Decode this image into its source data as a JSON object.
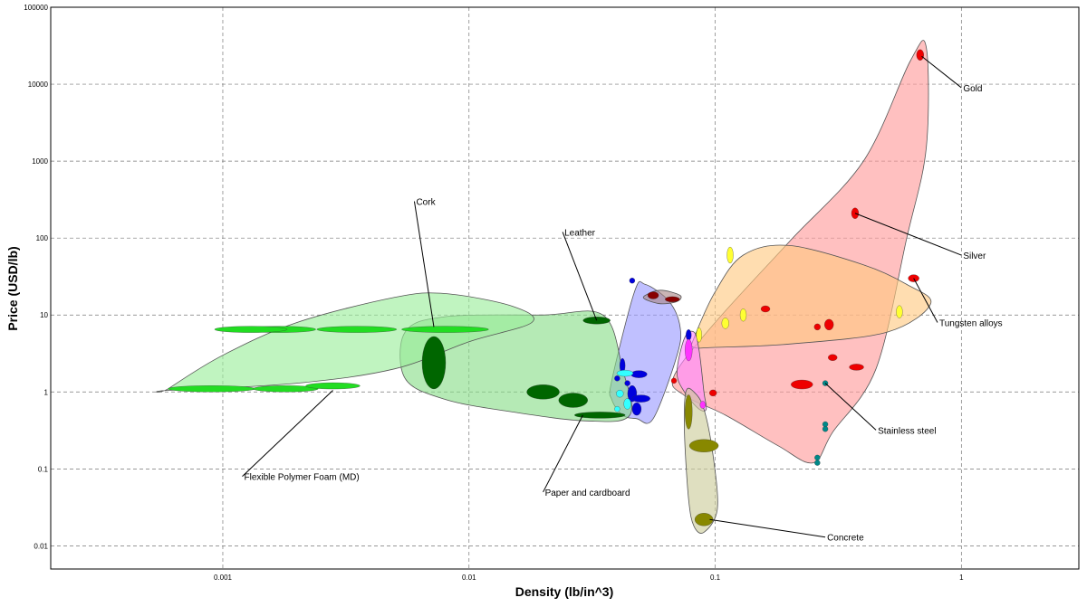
{
  "chart_data": {
    "type": "scatter",
    "title": "",
    "xlabel": "Density (lb/in^3)",
    "ylabel": "Price (USD/lb)",
    "x_scale": "log",
    "y_scale": "log",
    "xlim": [
      0.0002,
      3
    ],
    "ylim": [
      0.005,
      100000
    ],
    "grid": true,
    "x_ticks": [
      {
        "value": 0.001,
        "label": "0.001"
      },
      {
        "value": 0.01,
        "label": "0.01"
      },
      {
        "value": 0.1,
        "label": "0.1"
      },
      {
        "value": 1,
        "label": "1"
      }
    ],
    "y_ticks": [
      {
        "value": 0.01,
        "label": "0.01"
      },
      {
        "value": 0.1,
        "label": "0.1"
      },
      {
        "value": 1,
        "label": "1"
      },
      {
        "value": 10,
        "label": "10"
      },
      {
        "value": 100,
        "label": "100"
      },
      {
        "value": 1000,
        "label": "1000"
      },
      {
        "value": 10000,
        "label": "10000"
      },
      {
        "value": 100000,
        "label": "100000"
      }
    ],
    "envelopes": [
      {
        "fill": "#ff9999",
        "points": [
          [
            0.068,
            1.6
          ],
          [
            0.1,
            8
          ],
          [
            0.2,
            90
          ],
          [
            0.4,
            1000
          ],
          [
            0.62,
            20000
          ],
          [
            0.72,
            30000
          ],
          [
            0.72,
            1500
          ],
          [
            0.6,
            100
          ],
          [
            0.45,
            2
          ],
          [
            0.3,
            0.3
          ],
          [
            0.25,
            0.12
          ],
          [
            0.18,
            0.2
          ],
          [
            0.11,
            0.5
          ],
          [
            0.075,
            0.9
          ]
        ]
      },
      {
        "fill": "#ffc880",
        "points": [
          [
            0.082,
            5
          ],
          [
            0.1,
            20
          ],
          [
            0.13,
            60
          ],
          [
            0.2,
            80
          ],
          [
            0.4,
            45
          ],
          [
            0.6,
            25
          ],
          [
            0.75,
            14
          ],
          [
            0.5,
            6
          ],
          [
            0.2,
            4.2
          ],
          [
            0.1,
            3.8
          ],
          [
            0.082,
            3.8
          ]
        ]
      },
      {
        "fill": "#9999ff",
        "points": [
          [
            0.038,
            1.4
          ],
          [
            0.047,
            20
          ],
          [
            0.052,
            25
          ],
          [
            0.065,
            15
          ],
          [
            0.072,
            7
          ],
          [
            0.07,
            3
          ],
          [
            0.056,
            0.45
          ],
          [
            0.048,
            0.45
          ],
          [
            0.042,
            0.5
          ],
          [
            0.038,
            0.8
          ]
        ]
      },
      {
        "fill": "#ff88ff",
        "points": [
          [
            0.07,
            1.8
          ],
          [
            0.075,
            5
          ],
          [
            0.082,
            6
          ],
          [
            0.086,
            3.5
          ],
          [
            0.09,
            1
          ],
          [
            0.092,
            0.6
          ],
          [
            0.086,
            0.6
          ],
          [
            0.075,
            1
          ]
        ]
      },
      {
        "fill": "#aa8888",
        "points": [
          [
            0.052,
            18
          ],
          [
            0.06,
            21
          ],
          [
            0.072,
            18
          ],
          [
            0.07,
            15
          ],
          [
            0.06,
            14
          ],
          [
            0.052,
            16
          ]
        ]
      },
      {
        "fill": "#88dd88",
        "points": [
          [
            0.0055,
            6
          ],
          [
            0.008,
            9.5
          ],
          [
            0.02,
            10
          ],
          [
            0.035,
            10
          ],
          [
            0.042,
            2
          ],
          [
            0.045,
            0.5
          ],
          [
            0.03,
            0.42
          ],
          [
            0.015,
            0.55
          ],
          [
            0.008,
            0.8
          ],
          [
            0.0055,
            1.5
          ]
        ]
      },
      {
        "fill": "#99ee99",
        "points": [
          [
            0.0006,
            1.1
          ],
          [
            0.001,
            3
          ],
          [
            0.002,
            8
          ],
          [
            0.005,
            17
          ],
          [
            0.008,
            19
          ],
          [
            0.015,
            13
          ],
          [
            0.018,
            8
          ],
          [
            0.01,
            4.5
          ],
          [
            0.005,
            2
          ],
          [
            0.002,
            1.3
          ],
          [
            0.0006,
            1.05
          ]
        ]
      },
      {
        "fill": "#cccc99",
        "points": [
          [
            0.076,
            1
          ],
          [
            0.082,
            1
          ],
          [
            0.09,
            0.6
          ],
          [
            0.098,
            0.15
          ],
          [
            0.102,
            0.03
          ],
          [
            0.09,
            0.015
          ],
          [
            0.082,
            0.018
          ],
          [
            0.078,
            0.04
          ],
          [
            0.075,
            0.3
          ]
        ]
      }
    ],
    "bubbles": [
      {
        "x": 0.0009,
        "y": 1.1,
        "rx": 48,
        "ry": 3.5,
        "color": "#22dd22"
      },
      {
        "x": 0.0018,
        "y": 1.1,
        "rx": 36,
        "ry": 3.5,
        "color": "#22dd22"
      },
      {
        "x": 0.0028,
        "y": 1.2,
        "rx": 30,
        "ry": 3.5,
        "color": "#22dd22"
      },
      {
        "x": 0.0017,
        "y": 6.5,
        "rx": 40,
        "ry": 3.5,
        "color": "#22dd22"
      },
      {
        "x": 0.0035,
        "y": 6.5,
        "rx": 44,
        "ry": 3.5,
        "color": "#22dd22"
      },
      {
        "x": 0.008,
        "y": 6.5,
        "rx": 48,
        "ry": 3.5,
        "color": "#22dd22"
      },
      {
        "x": 0.0013,
        "y": 6.5,
        "rx": 40,
        "ry": 3.5,
        "color": "#22dd22"
      },
      {
        "x": 0.0072,
        "y": 2.4,
        "rx": 13,
        "ry": 29,
        "color": "#006600"
      },
      {
        "x": 0.033,
        "y": 8.5,
        "rx": 15,
        "ry": 4,
        "color": "#006600"
      },
      {
        "x": 0.02,
        "y": 1.0,
        "rx": 18,
        "ry": 8,
        "color": "#006600"
      },
      {
        "x": 0.0265,
        "y": 0.78,
        "rx": 16,
        "ry": 8,
        "color": "#006600"
      },
      {
        "x": 0.034,
        "y": 0.5,
        "rx": 28,
        "ry": 3.5,
        "color": "#006600"
      },
      {
        "x": 0.046,
        "y": 28,
        "rx": 3,
        "ry": 3,
        "color": "#0000dd"
      },
      {
        "x": 0.042,
        "y": 2.2,
        "rx": 3,
        "ry": 8,
        "color": "#0000dd"
      },
      {
        "x": 0.049,
        "y": 1.7,
        "rx": 9,
        "ry": 4,
        "color": "#0000dd"
      },
      {
        "x": 0.046,
        "y": 0.95,
        "rx": 5,
        "ry": 9,
        "color": "#0000dd"
      },
      {
        "x": 0.05,
        "y": 0.82,
        "rx": 10,
        "ry": 4,
        "color": "#0000dd"
      },
      {
        "x": 0.048,
        "y": 0.6,
        "rx": 5,
        "ry": 7,
        "color": "#0000dd"
      },
      {
        "x": 0.044,
        "y": 1.3,
        "rx": 3,
        "ry": 3,
        "color": "#0000dd"
      },
      {
        "x": 0.04,
        "y": 1.5,
        "rx": 3,
        "ry": 3,
        "color": "#0000dd"
      },
      {
        "x": 0.043,
        "y": 1.75,
        "rx": 9,
        "ry": 3.5,
        "color": "#33ffff"
      },
      {
        "x": 0.041,
        "y": 0.95,
        "rx": 4,
        "ry": 4,
        "color": "#33ffff"
      },
      {
        "x": 0.044,
        "y": 0.7,
        "rx": 4,
        "ry": 6,
        "color": "#33ffff"
      },
      {
        "x": 0.04,
        "y": 0.6,
        "rx": 3,
        "ry": 3,
        "color": "#33ffff"
      },
      {
        "x": 0.078,
        "y": 5.5,
        "rx": 3,
        "ry": 6,
        "color": "#0000dd"
      },
      {
        "x": 0.056,
        "y": 18,
        "rx": 6,
        "ry": 4,
        "color": "#880000"
      },
      {
        "x": 0.067,
        "y": 16,
        "rx": 8,
        "ry": 3,
        "color": "#880000"
      },
      {
        "x": 0.078,
        "y": 3.5,
        "rx": 4,
        "ry": 12,
        "color": "#ff33ff"
      },
      {
        "x": 0.089,
        "y": 0.68,
        "rx": 3,
        "ry": 4,
        "color": "#ff33ff"
      },
      {
        "x": 0.68,
        "y": 24000,
        "rx": 4,
        "ry": 6,
        "color": "#ee0000"
      },
      {
        "x": 0.37,
        "y": 210,
        "rx": 4,
        "ry": 6,
        "color": "#ee0000"
      },
      {
        "x": 0.64,
        "y": 30,
        "rx": 6,
        "ry": 4,
        "color": "#ee0000"
      },
      {
        "x": 0.16,
        "y": 12,
        "rx": 5,
        "ry": 3.5,
        "color": "#ee0000"
      },
      {
        "x": 0.29,
        "y": 7.5,
        "rx": 5,
        "ry": 6,
        "color": "#ee0000"
      },
      {
        "x": 0.26,
        "y": 7,
        "rx": 3.5,
        "ry": 3.5,
        "color": "#ee0000"
      },
      {
        "x": 0.3,
        "y": 2.8,
        "rx": 5,
        "ry": 3.5,
        "color": "#ee0000"
      },
      {
        "x": 0.375,
        "y": 2.1,
        "rx": 8,
        "ry": 3.5,
        "color": "#ee0000"
      },
      {
        "x": 0.225,
        "y": 1.25,
        "rx": 12,
        "ry": 5,
        "color": "#ee0000"
      },
      {
        "x": 0.098,
        "y": 0.97,
        "rx": 4,
        "ry": 3.5,
        "color": "#ee0000"
      },
      {
        "x": 0.068,
        "y": 1.4,
        "rx": 3,
        "ry": 3,
        "color": "#ee0000"
      },
      {
        "x": 0.115,
        "y": 60,
        "rx": 3.5,
        "ry": 9,
        "color": "#ffff33"
      },
      {
        "x": 0.13,
        "y": 10,
        "rx": 3.5,
        "ry": 7,
        "color": "#ffff33"
      },
      {
        "x": 0.11,
        "y": 7.8,
        "rx": 4,
        "ry": 6,
        "color": "#ffff33"
      },
      {
        "x": 0.086,
        "y": 5.5,
        "rx": 3,
        "ry": 8,
        "color": "#ffff33"
      },
      {
        "x": 0.56,
        "y": 11,
        "rx": 3.5,
        "ry": 7,
        "color": "#ffff33"
      },
      {
        "x": 0.28,
        "y": 1.3,
        "rx": 3,
        "ry": 3,
        "color": "#008888"
      },
      {
        "x": 0.28,
        "y": 0.38,
        "rx": 3,
        "ry": 3,
        "color": "#008888"
      },
      {
        "x": 0.28,
        "y": 0.33,
        "rx": 3,
        "ry": 3,
        "color": "#008888"
      },
      {
        "x": 0.26,
        "y": 0.14,
        "rx": 3,
        "ry": 3,
        "color": "#008888"
      },
      {
        "x": 0.26,
        "y": 0.12,
        "rx": 3,
        "ry": 3,
        "color": "#008888"
      },
      {
        "x": 0.078,
        "y": 0.55,
        "rx": 4,
        "ry": 19,
        "color": "#888800"
      },
      {
        "x": 0.09,
        "y": 0.2,
        "rx": 16,
        "ry": 7,
        "color": "#888800"
      },
      {
        "x": 0.09,
        "y": 0.022,
        "rx": 10,
        "ry": 7,
        "color": "#888800"
      }
    ],
    "annotations": [
      {
        "text": "Gold",
        "point": [
          0.69,
          23000
        ],
        "label": [
          1.0,
          9000
        ],
        "anchor": "start"
      },
      {
        "text": "Silver",
        "point": [
          0.37,
          210
        ],
        "label": [
          1.0,
          60
        ],
        "anchor": "start"
      },
      {
        "text": "Tungsten alloys",
        "point": [
          0.64,
          30
        ],
        "label": [
          0.8,
          8
        ],
        "anchor": "start"
      },
      {
        "text": "Stainless steel",
        "point": [
          0.28,
          1.3
        ],
        "label": [
          0.45,
          0.32
        ],
        "anchor": "start"
      },
      {
        "text": "Concrete",
        "point": [
          0.095,
          0.022
        ],
        "label": [
          0.28,
          0.013
        ],
        "anchor": "start"
      },
      {
        "text": "Cork",
        "point": [
          0.0072,
          7
        ],
        "label": [
          0.006,
          300
        ],
        "anchor": "start"
      },
      {
        "text": "Leather",
        "point": [
          0.033,
          8.5
        ],
        "label": [
          0.024,
          120
        ],
        "anchor": "start"
      },
      {
        "text": "Flexible Polymer Foam (MD)",
        "point": [
          0.0028,
          1.05
        ],
        "label": [
          0.0012,
          0.08
        ],
        "anchor": "start"
      },
      {
        "text": "Paper and cardboard",
        "point": [
          0.029,
          0.5
        ],
        "label": [
          0.02,
          0.05
        ],
        "anchor": "start"
      }
    ]
  }
}
